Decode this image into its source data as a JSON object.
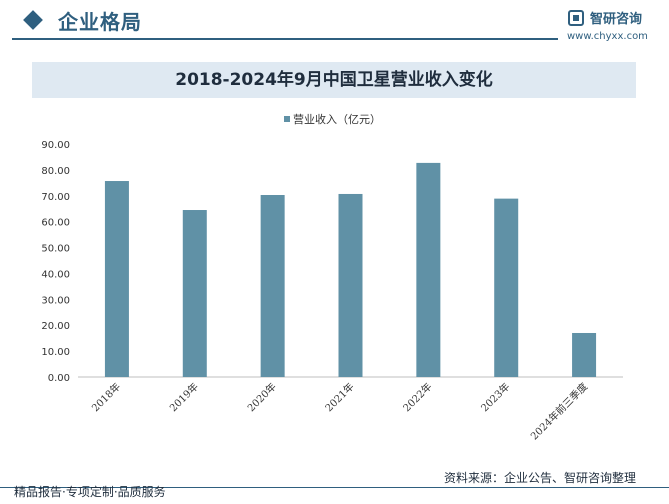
{
  "header": {
    "section_title": "企业格局",
    "logo_text": "智研咨询",
    "logo_url": "www.chyxx.com"
  },
  "footer": {
    "left": "精品报告·专项定制·品质服务",
    "right": "资料来源：企业公告、智研咨询整理"
  },
  "colors": {
    "bar": "#6091a6",
    "accent": "#2f5f7f",
    "title_band": "#dfe9f2"
  },
  "chart_data": {
    "type": "bar",
    "title": "2018-2024年9月中国卫星营业收入变化",
    "categories": [
      "2018年",
      "2019年",
      "2020年",
      "2021年",
      "2022年",
      "2023年",
      "2024年前三季度"
    ],
    "series": [
      {
        "name": "营业收入（亿元）",
        "values": [
          75.7,
          64.5,
          70.3,
          70.7,
          82.7,
          68.9,
          17.0
        ]
      }
    ],
    "ylim": [
      0,
      90
    ],
    "yticks": [
      0,
      10,
      20,
      30,
      40,
      50,
      60,
      70,
      80,
      90
    ],
    "ytick_labels": [
      "0.00",
      "10.00",
      "20.00",
      "30.00",
      "40.00",
      "50.00",
      "60.00",
      "70.00",
      "80.00",
      "90.00"
    ],
    "legend_position": "top-center",
    "grid": false
  }
}
